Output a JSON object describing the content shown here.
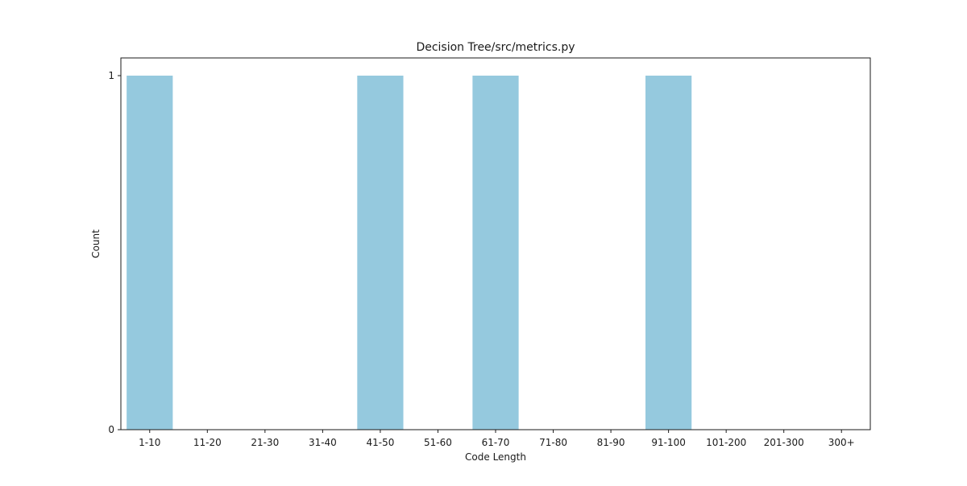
{
  "chart_data": {
    "type": "bar",
    "title": "Decision Tree/src/metrics.py",
    "xlabel": "Code Length",
    "ylabel": "Count",
    "categories": [
      "1-10",
      "11-20",
      "21-30",
      "31-40",
      "41-50",
      "51-60",
      "61-70",
      "71-80",
      "81-90",
      "91-100",
      "101-200",
      "201-300",
      "300+"
    ],
    "values": [
      1,
      0,
      0,
      0,
      1,
      0,
      1,
      0,
      0,
      1,
      0,
      0,
      0
    ],
    "ylim": [
      0,
      1.05
    ],
    "yticks": [
      0,
      1
    ],
    "grid": false,
    "bar_color": "#95c9de",
    "axis_color": "#1a1a1a"
  }
}
